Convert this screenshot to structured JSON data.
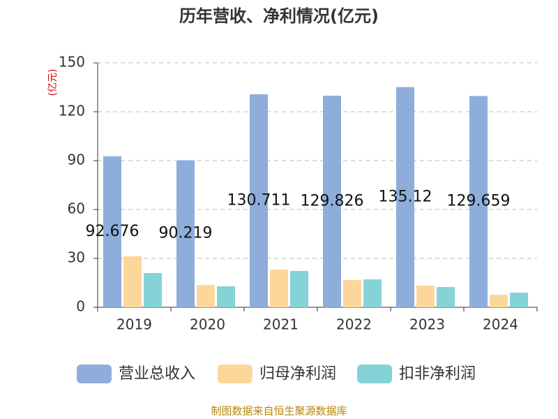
{
  "chart_data": {
    "type": "bar",
    "title": "历年营收、净利情况(亿元)",
    "y_label": "(亿元)",
    "categories": [
      "2019",
      "2020",
      "2021",
      "2022",
      "2023",
      "2024"
    ],
    "series": [
      {
        "name": "营业总收入",
        "color": "#8eaddb",
        "values": [
          92.676,
          90.219,
          130.711,
          129.826,
          135.12,
          129.659
        ],
        "data_labels": true
      },
      {
        "name": "归母净利润",
        "color": "#fdd799",
        "values": [
          31.3,
          13.7,
          23.1,
          16.7,
          13.3,
          7.7
        ]
      },
      {
        "name": "扣非净利润",
        "color": "#84d3d7",
        "values": [
          21.0,
          12.9,
          22.3,
          17.1,
          12.4,
          9.0
        ]
      }
    ],
    "ylim": [
      0,
      150
    ],
    "yticks": [
      0,
      30,
      60,
      90,
      120,
      150
    ],
    "grid": true,
    "source": "制图数据来自恒生聚源数据库"
  }
}
